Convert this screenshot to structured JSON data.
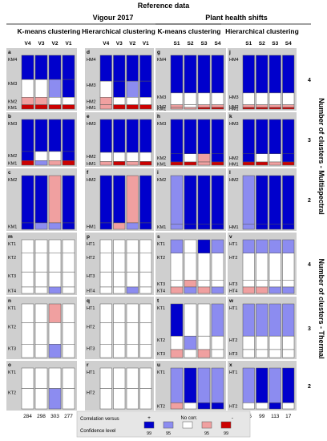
{
  "title": "Reference data",
  "groups": [
    {
      "label": "Vigour 2017"
    },
    {
      "label": "Plant health shifts"
    }
  ],
  "methods": [
    "K-means clustering",
    "Hierarchical clustering",
    "K-means clustering",
    "Hierarchical clustering"
  ],
  "col_labels": [
    [
      "V4",
      "V3",
      "V2",
      "V1"
    ],
    [
      "V4",
      "V3",
      "V2",
      "V1"
    ],
    [
      "S1",
      "S2",
      "S3",
      "S4"
    ],
    [
      "S1",
      "S2",
      "S3",
      "S4"
    ]
  ],
  "bottom_counts": [
    [
      "284",
      "298",
      "303",
      "277"
    ],
    [
      "284",
      "298",
      "303",
      "277"
    ],
    [
      "55",
      "99",
      "113",
      "17"
    ],
    [
      "55",
      "99",
      "113",
      "17"
    ]
  ],
  "side_labels": [
    "Number of clusters - Multispectral",
    "Number of clusters - Thermal"
  ],
  "row_numbers": [
    "4",
    "3",
    "2",
    "4",
    "3",
    "2"
  ],
  "panel_letters": [
    [
      "a",
      "d",
      "g",
      "j"
    ],
    [
      "b",
      "e",
      "h",
      "k"
    ],
    [
      "c",
      "f",
      "i",
      "l"
    ],
    [
      "m",
      "p",
      "s",
      "v"
    ],
    [
      "n",
      "q",
      "t",
      "w"
    ],
    [
      "o",
      "r",
      "u",
      "x"
    ]
  ],
  "row_cluster_labels": [
    [
      [
        "KM4",
        "KM3",
        "KM2",
        "KM1"
      ],
      [
        "HM4",
        "HM3",
        "HM2",
        "HM1"
      ],
      [
        "KM4",
        "KM3",
        "KM2",
        "KM1"
      ],
      [
        "HM4",
        "HM3",
        "HM2",
        "HM1"
      ]
    ],
    [
      [
        "KM3",
        "KM2",
        "KM1"
      ],
      [
        "HM3",
        "HM2",
        "HM1"
      ],
      [
        "KM3",
        "KM2",
        "KM1"
      ],
      [
        "HM3",
        "HM2",
        "HM1"
      ]
    ],
    [
      [
        "KM2",
        "KM1"
      ],
      [
        "HM2",
        "HM1"
      ],
      [
        "KM2",
        "KM1"
      ],
      [
        "HM2",
        "HM1"
      ]
    ],
    [
      [
        "KT1",
        "KT2",
        "KT3",
        "KT4"
      ],
      [
        "HT1",
        "HT2",
        "HT3",
        "HT4"
      ],
      [
        "KT1",
        "KT2",
        "KT3",
        "KT4"
      ],
      [
        "HT1",
        "HT2",
        "HT3",
        "HT4"
      ]
    ],
    [
      [
        "KT1",
        "KT2",
        "KT3"
      ],
      [
        "HT1",
        "HT2",
        "HT3"
      ],
      [
        "KT1",
        "KT2",
        "KT3"
      ],
      [
        "HT1",
        "HT2",
        "HT3"
      ]
    ],
    [
      [
        "KT1",
        "KT2"
      ],
      [
        "HT1",
        "HT2"
      ],
      [
        "KT1",
        "KT2"
      ],
      [
        "HT1",
        "HT2"
      ]
    ]
  ],
  "legend": {
    "row1_label": "Correlation versus",
    "row2_label": "Confidence level",
    "sign_plus": "+",
    "sign_minus": "-",
    "nocorr_label": "No corr.",
    "items": [
      {
        "color": "#0000cc",
        "level": "99"
      },
      {
        "color": "#8c8cf0",
        "level": "95"
      },
      {
        "color": "#ffffff",
        "level": ""
      },
      {
        "color": "#f0a0a0",
        "level": "95"
      },
      {
        "color": "#cc0000",
        "level": "99"
      }
    ]
  },
  "colors": {
    "pos99": "#0000cc",
    "pos95": "#8c8cf0",
    "none": "#ffffff",
    "neg95": "#f0a0a0",
    "neg99": "#cc0000",
    "panel_bg": "#cfcfcf"
  },
  "chart_data": {
    "type": "heatmap",
    "value_codes": {
      "2": "positive 99%",
      "1": "positive 95%",
      "0": "no correlation",
      "-1": "negative 95%",
      "-2": "negative 99%"
    },
    "rows": [
      {
        "n_clusters": 4,
        "sensor": "Multispectral",
        "cluster_shares": [
          [
            0.45,
            0.33,
            0.14,
            0.08
          ],
          [
            0.48,
            0.3,
            0.14,
            0.08
          ],
          [
            0.7,
            0.22,
            0.05,
            0.03
          ],
          [
            0.7,
            0.22,
            0.05,
            0.03
          ]
        ],
        "cells": [
          [
            [
              2,
              0,
              -1,
              -2
            ],
            [
              2,
              0,
              -1,
              -2
            ],
            [
              2,
              1,
              0,
              -2
            ],
            [
              2,
              2,
              0,
              -2
            ]
          ],
          [
            [
              2,
              0,
              -1,
              -1
            ],
            [
              2,
              2,
              0,
              -2
            ],
            [
              2,
              1,
              0,
              -2
            ],
            [
              2,
              2,
              0,
              -2
            ]
          ],
          [
            [
              2,
              0,
              -1,
              -1
            ],
            [
              2,
              0,
              0,
              -1
            ],
            [
              2,
              0,
              -1,
              -2
            ],
            [
              2,
              0,
              -1,
              -2
            ]
          ],
          [
            [
              2,
              0,
              -1,
              -2
            ],
            [
              2,
              0,
              -1,
              -2
            ],
            [
              2,
              0,
              -1,
              -2
            ],
            [
              2,
              0,
              -1,
              -2
            ]
          ]
        ]
      },
      {
        "n_clusters": 3,
        "sensor": "Multispectral",
        "cluster_shares": [
          [
            0.7,
            0.2,
            0.1
          ],
          [
            0.72,
            0.2,
            0.08
          ],
          [
            0.75,
            0.18,
            0.07
          ],
          [
            0.75,
            0.18,
            0.07
          ]
        ],
        "cells": [
          [
            [
              2,
              2,
              -2
            ],
            [
              2,
              0,
              1
            ],
            [
              2,
              0,
              -1
            ],
            [
              2,
              2,
              -2
            ]
          ],
          [
            [
              2,
              0,
              -1
            ],
            [
              2,
              0,
              -2
            ],
            [
              2,
              0,
              -1
            ],
            [
              2,
              0,
              -2
            ]
          ],
          [
            [
              2,
              2,
              -2
            ],
            [
              2,
              0,
              -2
            ],
            [
              2,
              -1,
              -1
            ],
            [
              2,
              2,
              -2
            ]
          ],
          [
            [
              2,
              2,
              -2
            ],
            [
              2,
              0,
              -2
            ],
            [
              2,
              0,
              -1
            ],
            [
              2,
              2,
              -2
            ]
          ]
        ]
      },
      {
        "n_clusters": 2,
        "sensor": "Multispectral",
        "cluster_shares": [
          [
            0.88,
            0.12
          ],
          [
            0.88,
            0.12
          ],
          [
            0.9,
            0.1
          ],
          [
            0.9,
            0.1
          ]
        ],
        "cells": [
          [
            [
              2,
              2
            ],
            [
              2,
              1
            ],
            [
              -1,
              1
            ],
            [
              2,
              2
            ]
          ],
          [
            [
              2,
              2
            ],
            [
              2,
              -1
            ],
            [
              -1,
              1
            ],
            [
              2,
              2
            ]
          ],
          [
            [
              1,
              1
            ],
            [
              2,
              2
            ],
            [
              2,
              2
            ],
            [
              2,
              2
            ]
          ],
          [
            [
              1,
              1
            ],
            [
              2,
              2
            ],
            [
              2,
              2
            ],
            [
              2,
              2
            ]
          ]
        ]
      },
      {
        "n_clusters": 4,
        "sensor": "Thermal",
        "cluster_shares": [
          [
            0.25,
            0.35,
            0.28,
            0.12
          ],
          [
            0.25,
            0.35,
            0.28,
            0.12
          ],
          [
            0.25,
            0.5,
            0.13,
            0.12
          ],
          [
            0.25,
            0.5,
            0.13,
            0.12
          ]
        ],
        "cells": [
          [
            [
              0,
              0,
              0,
              0
            ],
            [
              0,
              0,
              0,
              0
            ],
            [
              0,
              0,
              0,
              1
            ],
            [
              0,
              0,
              0,
              0
            ]
          ],
          [
            [
              0,
              0,
              0,
              0
            ],
            [
              0,
              0,
              0,
              0
            ],
            [
              0,
              0,
              0,
              1
            ],
            [
              0,
              0,
              0,
              0
            ]
          ],
          [
            [
              1,
              0,
              0,
              -1
            ],
            [
              0,
              0,
              -1,
              1
            ],
            [
              2,
              0,
              0,
              -1
            ],
            [
              1,
              0,
              0,
              1
            ]
          ],
          [
            [
              1,
              0,
              0,
              -1
            ],
            [
              1,
              0,
              0,
              -1
            ],
            [
              1,
              0,
              0,
              1
            ],
            [
              1,
              0,
              0,
              1
            ]
          ]
        ]
      },
      {
        "n_clusters": 3,
        "sensor": "Thermal",
        "cluster_shares": [
          [
            0.35,
            0.4,
            0.25
          ],
          [
            0.35,
            0.4,
            0.25
          ],
          [
            0.6,
            0.25,
            0.15
          ],
          [
            0.6,
            0.25,
            0.15
          ]
        ],
        "cells": [
          [
            [
              0,
              0,
              0
            ],
            [
              0,
              0,
              0
            ],
            [
              -1,
              0,
              1
            ],
            [
              0,
              0,
              0
            ]
          ],
          [
            [
              0,
              0,
              0
            ],
            [
              0,
              0,
              0
            ],
            [
              0,
              0,
              0
            ],
            [
              0,
              0,
              0
            ]
          ],
          [
            [
              2,
              0,
              -1
            ],
            [
              0,
              1,
              0
            ],
            [
              0,
              0,
              -1
            ],
            [
              1,
              0,
              0
            ]
          ],
          [
            [
              1,
              0,
              0
            ],
            [
              1,
              0,
              0
            ],
            [
              1,
              0,
              0
            ],
            [
              1,
              0,
              0
            ]
          ]
        ]
      },
      {
        "n_clusters": 2,
        "sensor": "Thermal",
        "cluster_shares": [
          [
            0.5,
            0.5
          ],
          [
            0.5,
            0.5
          ],
          [
            0.85,
            0.15
          ],
          [
            0.85,
            0.15
          ]
        ],
        "cells": [
          [
            [
              0,
              0
            ],
            [
              0,
              0
            ],
            [
              0,
              1
            ],
            [
              0,
              0
            ]
          ],
          [
            [
              0,
              0
            ],
            [
              0,
              0
            ],
            [
              0,
              0
            ],
            [
              0,
              0
            ]
          ],
          [
            [
              1,
              -1
            ],
            [
              2,
              0
            ],
            [
              1,
              2
            ],
            [
              1,
              2
            ]
          ],
          [
            [
              1,
              0
            ],
            [
              2,
              0
            ],
            [
              1,
              2
            ],
            [
              2,
              0
            ]
          ]
        ]
      }
    ]
  }
}
